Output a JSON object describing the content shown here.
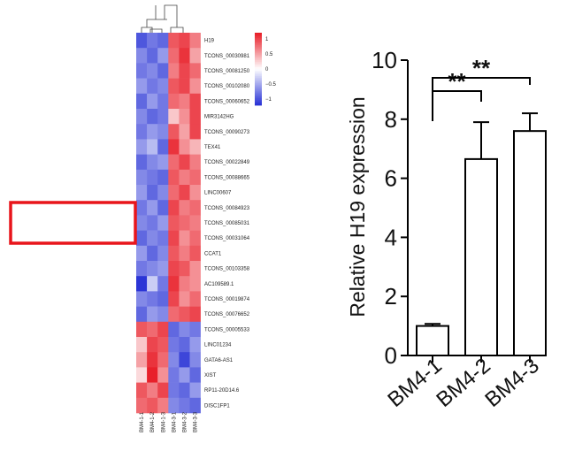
{
  "chart_data": [
    {
      "type": "heatmap",
      "rows": [
        "H19",
        "TCONS_00030981",
        "TCONS_00081250",
        "TCONS_00102080",
        "TCONS_00060652",
        "MIR3142HG",
        "TCONS_00090273",
        "TEX41",
        "TCONS_00022849",
        "TCONS_00088665",
        "LINC00607",
        "TCONS_00084923",
        "TCONS_00085031",
        "TCONS_00031064",
        "CCAT1",
        "TCONS_00103358",
        "AC109589.1",
        "TCONS_00019874",
        "TCONS_00076652",
        "TCONS_00005533",
        "LINC01234",
        "GATA6-AS1",
        "XIST",
        "RP11-20D14.6",
        "DISC1FP1"
      ],
      "columns": [
        "BM4-1-1",
        "BM4-1-2",
        "BM4-1-3",
        "BM4-3-1",
        "BM4-3-2",
        "BM4-3-3"
      ],
      "values": [
        [
          -1.0,
          -0.8,
          -0.9,
          0.9,
          1.0,
          0.7
        ],
        [
          -0.7,
          -0.9,
          -0.6,
          0.8,
          1.1,
          0.5
        ],
        [
          -0.8,
          -0.7,
          -0.9,
          0.7,
          1.0,
          0.8
        ],
        [
          -0.6,
          -0.8,
          -0.7,
          0.9,
          1.0,
          0.6
        ],
        [
          -0.9,
          -0.6,
          -0.8,
          0.8,
          0.7,
          1.0
        ],
        [
          -0.7,
          -0.9,
          -0.8,
          0.3,
          0.6,
          1.0
        ],
        [
          -0.8,
          -0.6,
          -0.7,
          0.9,
          0.5,
          1.0
        ],
        [
          -0.6,
          -0.4,
          -0.9,
          1.1,
          0.6,
          0.4
        ],
        [
          -0.9,
          -0.7,
          -0.6,
          0.8,
          1.0,
          0.7
        ],
        [
          -0.7,
          -0.8,
          -0.9,
          0.9,
          0.7,
          0.8
        ],
        [
          -0.6,
          -0.9,
          -0.7,
          0.8,
          1.0,
          0.6
        ],
        [
          -0.8,
          -0.6,
          -0.9,
          1.0,
          0.7,
          0.8
        ],
        [
          -0.7,
          -0.8,
          -0.6,
          0.9,
          0.8,
          0.7
        ],
        [
          -0.9,
          -0.7,
          -0.8,
          1.0,
          0.6,
          0.8
        ],
        [
          -0.6,
          -0.9,
          -0.7,
          0.9,
          0.7,
          0.9
        ],
        [
          -0.8,
          -0.7,
          -0.6,
          1.0,
          0.9,
          0.6
        ],
        [
          -1.2,
          -0.3,
          -0.8,
          1.1,
          0.7,
          0.6
        ],
        [
          -0.7,
          -0.8,
          -0.9,
          1.0,
          0.6,
          0.8
        ],
        [
          -0.9,
          -0.6,
          -0.7,
          0.8,
          0.9,
          1.0
        ],
        [
          0.9,
          0.8,
          1.0,
          -0.9,
          -0.7,
          -0.8
        ],
        [
          0.3,
          1.0,
          0.9,
          -0.8,
          -0.9,
          -0.6
        ],
        [
          0.5,
          1.1,
          0.8,
          -0.7,
          -1.1,
          -0.7
        ],
        [
          0.2,
          1.2,
          0.6,
          -0.8,
          -0.6,
          -0.9
        ],
        [
          0.9,
          0.7,
          1.0,
          -0.8,
          -0.9,
          -0.6
        ],
        [
          0.8,
          0.9,
          0.7,
          -0.7,
          -0.8,
          -0.9
        ]
      ],
      "scale": {
        "ticks": [
          1,
          0.5,
          0,
          -0.5,
          -1
        ],
        "tick_labels": [
          "1",
          "0.5",
          "0",
          "−0.5",
          "−1"
        ],
        "colors": {
          "high": "#e8202a",
          "mid": "#ffffff",
          "low": "#2b35d6"
        }
      }
    },
    {
      "type": "bar",
      "categories": [
        "BM4-1",
        "BM4-2",
        "BM4-3"
      ],
      "values": [
        1.0,
        6.65,
        7.6
      ],
      "errors": [
        0.07,
        1.25,
        0.6
      ],
      "ylabel": "Relative H19 expression",
      "ylim": [
        0,
        10
      ],
      "yticks": [
        0,
        2,
        4,
        6,
        8,
        10
      ],
      "significance": [
        {
          "from": "BM4-1",
          "to": "BM4-2",
          "label": "**"
        },
        {
          "from": "BM4-1",
          "to": "BM4-3",
          "label": "**"
        }
      ],
      "grid": false
    }
  ],
  "annotation": {
    "color": "#e8151b"
  }
}
